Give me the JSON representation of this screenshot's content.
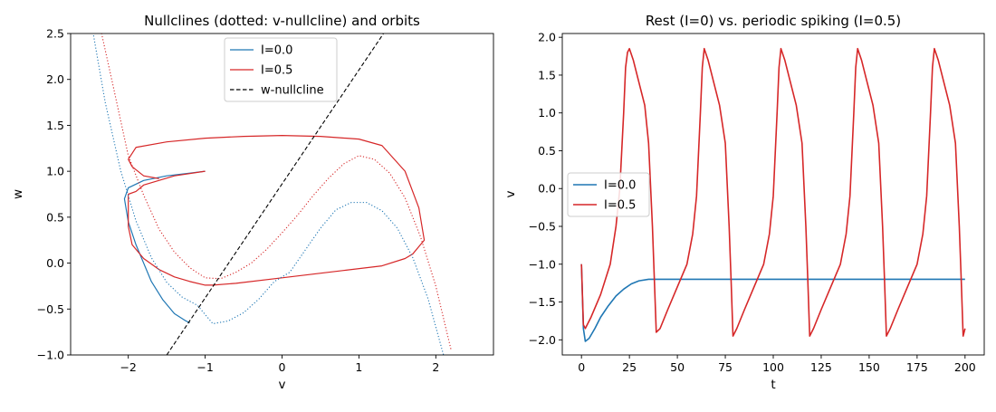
{
  "figure": {
    "background": "#ffffff"
  },
  "chart_data": [
    {
      "type": "line",
      "title": "Nullclines (dotted: v-nullcline) and orbits",
      "xlabel": "v",
      "ylabel": "w",
      "xlim": [
        -2.75,
        2.75
      ],
      "ylim": [
        -1.0,
        2.5
      ],
      "xticks": [
        -2,
        -1,
        0,
        1,
        2
      ],
      "xtick_labels": [
        "−2",
        "−1",
        "0",
        "1",
        "2"
      ],
      "yticks": [
        -1.0,
        -0.5,
        0.0,
        0.5,
        1.0,
        1.5,
        2.0,
        2.5
      ],
      "ytick_labels": [
        "−1.0",
        "−0.5",
        "0.0",
        "0.5",
        "1.0",
        "1.5",
        "2.0",
        "2.5"
      ],
      "grid": false,
      "legend_position": "top-center",
      "legend": [
        {
          "label": "I=0.0",
          "color": "#1f77b4",
          "style": "solid"
        },
        {
          "label": "I=0.5",
          "color": "#d62728",
          "style": "solid"
        },
        {
          "label": "w-nullcline",
          "color": "#000000",
          "style": "dashed"
        }
      ],
      "series": [
        {
          "name": "I=0.0",
          "color": "#1f77b4",
          "style": "solid",
          "x": [
            -1.0,
            -1.2,
            -1.5,
            -1.8,
            -2.0,
            -2.05,
            -2.0,
            -1.9,
            -1.8,
            -1.7,
            -1.55,
            -1.4,
            -1.25,
            -1.2
          ],
          "y": [
            1.0,
            0.98,
            0.95,
            0.9,
            0.82,
            0.7,
            0.45,
            0.2,
            0.0,
            -0.2,
            -0.4,
            -0.55,
            -0.63,
            -0.65
          ]
        },
        {
          "name": "I=0.5",
          "color": "#d62728",
          "style": "solid",
          "x": [
            -1.0,
            -1.4,
            -1.8,
            -1.9,
            -2.0,
            -2.0,
            -1.95,
            -1.8,
            -1.6,
            -1.4,
            -1.2,
            -1.0,
            -0.9,
            -0.6,
            0.0,
            0.8,
            1.3,
            1.6,
            1.7,
            1.8,
            1.85,
            1.78,
            1.6,
            1.3,
            1.0,
            0.5,
            0.0,
            -0.5,
            -1.0,
            -1.5,
            -1.9,
            -2.0,
            -1.95,
            -1.8,
            -1.6
          ],
          "y": [
            1.0,
            0.95,
            0.85,
            0.78,
            0.75,
            0.4,
            0.2,
            0.05,
            -0.07,
            -0.15,
            -0.2,
            -0.24,
            -0.24,
            -0.22,
            -0.16,
            -0.08,
            -0.03,
            0.05,
            0.1,
            0.2,
            0.25,
            0.6,
            1.0,
            1.28,
            1.35,
            1.38,
            1.39,
            1.38,
            1.36,
            1.32,
            1.26,
            1.13,
            1.05,
            0.95,
            0.92
          ]
        },
        {
          "name": "v-nullcline I=0.0",
          "color": "#1f77b4",
          "style": "dotted",
          "x": [
            -2.5,
            -2.3,
            -2.1,
            -1.9,
            -1.7,
            -1.5,
            -1.3,
            -1.1,
            -0.9,
            -0.7,
            -0.5,
            -0.3,
            -0.1,
            0.1,
            0.3,
            0.5,
            0.7,
            0.9,
            1.1,
            1.3,
            1.5,
            1.7,
            1.9,
            2.1
          ],
          "y": [
            2.71,
            1.75,
            1.01,
            0.46,
            0.06,
            -0.21,
            -0.37,
            -0.46,
            -0.66,
            -0.63,
            -0.54,
            -0.39,
            -0.2,
            -0.1,
            0.14,
            0.38,
            0.58,
            0.66,
            0.66,
            0.57,
            0.38,
            0.06,
            -0.39,
            -1.0
          ]
        },
        {
          "name": "v-nullcline I=0.5",
          "color": "#d62728",
          "style": "dotted",
          "x": [
            -2.4,
            -2.2,
            -2.0,
            -1.8,
            -1.6,
            -1.4,
            -1.2,
            -1.0,
            -0.8,
            -0.6,
            -0.4,
            -0.2,
            0.0,
            0.2,
            0.4,
            0.6,
            0.8,
            1.0,
            1.2,
            1.4,
            1.6,
            1.8,
            2.0,
            2.2
          ],
          "y": [
            2.7,
            1.94,
            1.17,
            0.74,
            0.37,
            0.12,
            -0.05,
            -0.16,
            -0.17,
            -0.1,
            0.0,
            0.15,
            0.33,
            0.52,
            0.73,
            0.92,
            1.08,
            1.17,
            1.13,
            0.98,
            0.71,
            0.29,
            -0.25,
            -0.95
          ]
        },
        {
          "name": "w-nullcline",
          "color": "#000000",
          "style": "dashed",
          "x": [
            -1.5,
            1.32
          ],
          "y": [
            -1.0,
            2.5
          ]
        }
      ]
    },
    {
      "type": "line",
      "title": "Rest (I=0) vs. periodic spiking (I=0.5)",
      "xlabel": "t",
      "ylabel": "v",
      "xlim": [
        -10,
        210
      ],
      "ylim": [
        -2.2,
        2.05
      ],
      "xticks": [
        0,
        25,
        50,
        75,
        100,
        125,
        150,
        175,
        200
      ],
      "xtick_labels": [
        "0",
        "25",
        "50",
        "75",
        "100",
        "125",
        "150",
        "175",
        "200"
      ],
      "yticks": [
        -2.0,
        -1.5,
        -1.0,
        -0.5,
        0.0,
        0.5,
        1.0,
        1.5,
        2.0
      ],
      "ytick_labels": [
        "−2.0",
        "−1.5",
        "−1.0",
        "−0.5",
        "0.0",
        "0.5",
        "1.0",
        "1.5",
        "2.0"
      ],
      "grid": false,
      "legend_position": "center-left",
      "legend": [
        {
          "label": "I=0.0",
          "color": "#1f77b4",
          "style": "solid"
        },
        {
          "label": "I=0.5",
          "color": "#d62728",
          "style": "solid"
        }
      ],
      "series": [
        {
          "name": "I=0.0",
          "color": "#1f77b4",
          "style": "solid",
          "x": [
            0,
            1,
            2,
            4,
            7,
            10,
            14,
            18,
            22,
            26,
            30,
            35,
            40,
            60,
            100,
            150,
            200
          ],
          "y": [
            -1.0,
            -1.85,
            -2.02,
            -1.98,
            -1.85,
            -1.7,
            -1.55,
            -1.42,
            -1.33,
            -1.26,
            -1.22,
            -1.2,
            -1.2,
            -1.2,
            -1.2,
            -1.2,
            -1.2
          ]
        },
        {
          "name": "I=0.5",
          "color": "#d62728",
          "style": "solid",
          "x": [
            0,
            1,
            2,
            5,
            10,
            15,
            18,
            20,
            22,
            23,
            24,
            25,
            27,
            30,
            33,
            35,
            37,
            38,
            39,
            41,
            45,
            50,
            55,
            58,
            60,
            62,
            63,
            64,
            66,
            69,
            72,
            75,
            77,
            78,
            79,
            81,
            85,
            90,
            95,
            98,
            100,
            102,
            103,
            104,
            106,
            109,
            112,
            115,
            117,
            118,
            119,
            121,
            125,
            130,
            135,
            138,
            140,
            142,
            143,
            144,
            146,
            149,
            152,
            155,
            157,
            158,
            159,
            161,
            165,
            170,
            175,
            178,
            180,
            182,
            183,
            184,
            186,
            189,
            192,
            195,
            197,
            198,
            199,
            200
          ],
          "y": [
            -1.0,
            -1.8,
            -1.85,
            -1.7,
            -1.4,
            -1.0,
            -0.5,
            0.0,
            1.0,
            1.6,
            1.8,
            1.85,
            1.7,
            1.4,
            1.1,
            0.6,
            -0.5,
            -1.2,
            -1.9,
            -1.85,
            -1.6,
            -1.3,
            -1.0,
            -0.6,
            -0.1,
            1.0,
            1.6,
            1.85,
            1.7,
            1.4,
            1.1,
            0.6,
            -0.5,
            -1.2,
            -1.95,
            -1.85,
            -1.6,
            -1.3,
            -1.0,
            -0.6,
            -0.1,
            1.0,
            1.6,
            1.85,
            1.7,
            1.4,
            1.1,
            0.6,
            -0.5,
            -1.2,
            -1.95,
            -1.85,
            -1.6,
            -1.3,
            -1.0,
            -0.6,
            -0.1,
            1.0,
            1.6,
            1.85,
            1.7,
            1.4,
            1.1,
            0.6,
            -0.5,
            -1.2,
            -1.95,
            -1.85,
            -1.6,
            -1.3,
            -1.0,
            -0.6,
            -0.1,
            1.0,
            1.6,
            1.85,
            1.7,
            1.4,
            1.1,
            0.6,
            -0.5,
            -1.2,
            -1.95,
            -1.85
          ]
        }
      ]
    }
  ]
}
